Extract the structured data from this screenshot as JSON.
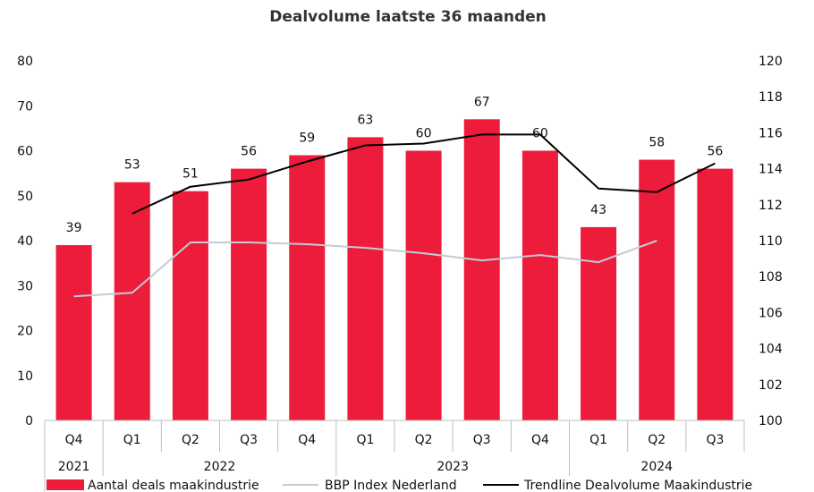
{
  "chart_data": {
    "type": "bar",
    "title": "Dealvolume laatste 36 maanden",
    "categories": [
      "Q4",
      "Q1",
      "Q2",
      "Q3",
      "Q4",
      "Q1",
      "Q2",
      "Q3",
      "Q4",
      "Q1",
      "Q2",
      "Q3"
    ],
    "year_groups": [
      {
        "label": "2021",
        "count": 1
      },
      {
        "label": "2022",
        "count": 4
      },
      {
        "label": "2023",
        "count": 4
      },
      {
        "label": "2024",
        "count": 3
      }
    ],
    "y_left": {
      "min": 0,
      "max": 80,
      "step": 10,
      "ticks": [
        "0",
        "10",
        "20",
        "30",
        "40",
        "50",
        "60",
        "70",
        "80"
      ]
    },
    "y_right": {
      "min": 100,
      "max": 120,
      "step": 2,
      "ticks": [
        "100",
        "102",
        "104",
        "106",
        "108",
        "110",
        "112",
        "114",
        "116",
        "118",
        "120"
      ]
    },
    "series": [
      {
        "name": "Aantal deals maakindustrie",
        "kind": "bar",
        "axis": "left",
        "color": "#ED1C3B",
        "values": [
          39,
          53,
          51,
          56,
          59,
          63,
          60,
          67,
          60,
          43,
          58,
          56
        ],
        "labels": [
          "39",
          "53",
          "51",
          "56",
          "59",
          "63",
          "60",
          "67",
          "60",
          "43",
          "58",
          "56"
        ]
      },
      {
        "name": "BBP Index Nederland",
        "kind": "line",
        "axis": "right",
        "color": "#C3CCD6",
        "values": [
          106.9,
          107.1,
          109.9,
          109.9,
          109.8,
          109.6,
          109.3,
          108.9,
          109.2,
          108.8,
          110.0,
          null
        ]
      },
      {
        "name": "Trendline Dealvolume Maakindustrie",
        "kind": "line",
        "axis": "right",
        "color": "#000000",
        "values": [
          null,
          111.5,
          113.0,
          113.4,
          114.4,
          115.3,
          115.4,
          115.9,
          115.9,
          112.9,
          112.7,
          114.3
        ]
      }
    ],
    "legend_position": "bottom",
    "grid": false
  }
}
